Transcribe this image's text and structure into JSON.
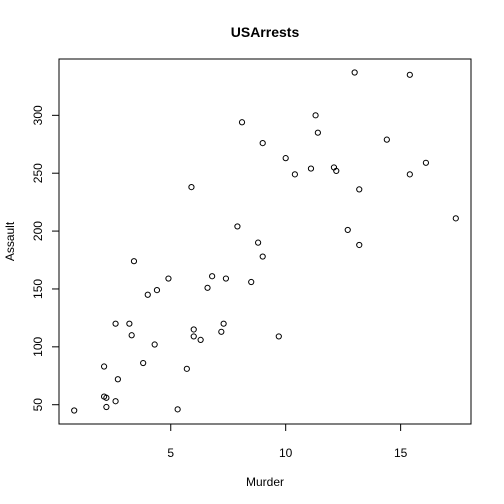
{
  "chart_data": {
    "type": "scatter",
    "title": "USArrests",
    "xlabel": "Murder",
    "ylabel": "Assault",
    "xlim": [
      0.8,
      17.4
    ],
    "ylim": [
      45,
      337
    ],
    "xticks": [
      5,
      10,
      15
    ],
    "yticks": [
      50,
      100,
      150,
      200,
      250,
      300
    ],
    "grid": false,
    "marker": "open-circle",
    "points": [
      {
        "x": 13.2,
        "y": 236
      },
      {
        "x": 10.0,
        "y": 263
      },
      {
        "x": 8.1,
        "y": 294
      },
      {
        "x": 8.8,
        "y": 190
      },
      {
        "x": 9.0,
        "y": 276
      },
      {
        "x": 7.9,
        "y": 204
      },
      {
        "x": 3.3,
        "y": 110
      },
      {
        "x": 5.9,
        "y": 238
      },
      {
        "x": 15.4,
        "y": 335
      },
      {
        "x": 17.4,
        "y": 211
      },
      {
        "x": 5.3,
        "y": 46
      },
      {
        "x": 2.6,
        "y": 120
      },
      {
        "x": 10.4,
        "y": 249
      },
      {
        "x": 7.2,
        "y": 113
      },
      {
        "x": 2.2,
        "y": 56
      },
      {
        "x": 6.0,
        "y": 115
      },
      {
        "x": 9.7,
        "y": 109
      },
      {
        "x": 15.4,
        "y": 249
      },
      {
        "x": 2.1,
        "y": 83
      },
      {
        "x": 11.3,
        "y": 300
      },
      {
        "x": 4.4,
        "y": 149
      },
      {
        "x": 12.1,
        "y": 255
      },
      {
        "x": 2.7,
        "y": 72
      },
      {
        "x": 16.1,
        "y": 259
      },
      {
        "x": 9.0,
        "y": 178
      },
      {
        "x": 6.0,
        "y": 109
      },
      {
        "x": 4.3,
        "y": 102
      },
      {
        "x": 12.2,
        "y": 252
      },
      {
        "x": 2.1,
        "y": 57
      },
      {
        "x": 7.4,
        "y": 159
      },
      {
        "x": 11.4,
        "y": 285
      },
      {
        "x": 11.1,
        "y": 254
      },
      {
        "x": 13.0,
        "y": 337
      },
      {
        "x": 0.8,
        "y": 45
      },
      {
        "x": 7.3,
        "y": 120
      },
      {
        "x": 6.6,
        "y": 151
      },
      {
        "x": 4.9,
        "y": 159
      },
      {
        "x": 6.3,
        "y": 106
      },
      {
        "x": 3.4,
        "y": 174
      },
      {
        "x": 14.4,
        "y": 279
      },
      {
        "x": 3.8,
        "y": 86
      },
      {
        "x": 13.2,
        "y": 188
      },
      {
        "x": 12.7,
        "y": 201
      },
      {
        "x": 3.2,
        "y": 120
      },
      {
        "x": 2.2,
        "y": 48
      },
      {
        "x": 8.5,
        "y": 156
      },
      {
        "x": 4.0,
        "y": 145
      },
      {
        "x": 5.7,
        "y": 81
      },
      {
        "x": 2.6,
        "y": 53
      },
      {
        "x": 6.8,
        "y": 161
      }
    ]
  }
}
